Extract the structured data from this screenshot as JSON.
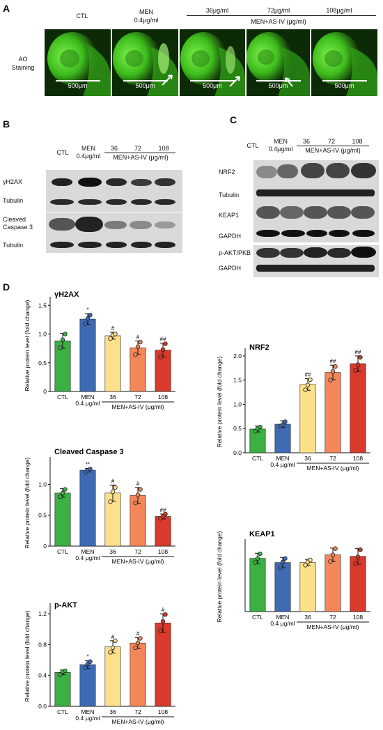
{
  "panelA": {
    "label": "A",
    "headers": {
      "ctl": "CTL",
      "men": "MEN",
      "men_dose": "0.4μg/ml",
      "d36": "36μg/ml",
      "d72": "72μg/ml",
      "d108": "108μg/ml",
      "group": "MEN+AS-IV (μg/ml)"
    },
    "row_label_1": "AO",
    "row_label_2": "Staining",
    "scale_text": "500μm"
  },
  "panelB": {
    "label": "B",
    "headers": {
      "ctl": "CTL",
      "men": "MEN",
      "men_dose": "0.4μg/ml",
      "d36": "36",
      "d72": "72",
      "d108": "108",
      "group": "MEN+AS-IV (μg/ml)"
    },
    "rows": {
      "h2ax": "γH2AX",
      "tub1": "Tubulin",
      "casp_1": "Cleaved",
      "casp_2": "Caspase 3",
      "tub2": "Tubulin"
    }
  },
  "panelC": {
    "label": "C",
    "headers": {
      "ctl": "CTL",
      "men": "MEN",
      "men_dose": "0.4μg/ml",
      "d36": "36",
      "d72": "72",
      "d108": "108",
      "group": "MEN+AS-IV (μg/ml)"
    },
    "rows": {
      "nrf2": "NRF2",
      "tub": "Tubulin",
      "keap1": "KEAP1",
      "gapdh1": "GAPDH",
      "pakt": "p-AKT/PKB",
      "gapdh2": "GAPDH"
    }
  },
  "panelD": {
    "label": "D"
  },
  "colors": {
    "ctl": "#3cb043",
    "men": "#3f6bb5",
    "d36": "#ffe08a",
    "d72": "#f4875a",
    "d108": "#d93a2b"
  },
  "chart_data": [
    {
      "id": "h2ax",
      "type": "bar",
      "title": "γH2AX",
      "ylabel": "Relative protein level (fold change)",
      "categories": [
        "CTL",
        "MEN",
        "36",
        "72",
        "108"
      ],
      "category_sublabel": {
        "MEN": "0.4 μg/ml"
      },
      "group_label": "MEN+AS-IV (μg/ml)",
      "values": [
        0.88,
        1.26,
        0.97,
        0.76,
        0.72
      ],
      "errors": [
        0.13,
        0.09,
        0.06,
        0.12,
        0.12
      ],
      "points": [
        [
          0.76,
          0.9,
          1.0
        ],
        [
          1.18,
          1.27,
          1.33
        ],
        [
          0.92,
          0.98,
          1.0
        ],
        [
          0.64,
          0.78,
          0.86
        ],
        [
          0.6,
          0.73,
          0.83
        ]
      ],
      "annotations": [
        "",
        "*",
        "#",
        "#",
        "##"
      ],
      "ylim": [
        0,
        1.6
      ],
      "yticks": [
        0,
        0.5,
        1.0,
        1.5
      ]
    },
    {
      "id": "nrf2",
      "type": "bar",
      "title": "NRF2",
      "ylabel": "Relative protein level (fold change)",
      "categories": [
        "CTL",
        "MEN",
        "36",
        "72",
        "108"
      ],
      "category_sublabel": {
        "MEN": "0.4 μg/ml"
      },
      "group_label": "MEN+AS-IV (μg/ml)",
      "values": [
        0.49,
        0.59,
        1.41,
        1.66,
        1.84
      ],
      "errors": [
        0.06,
        0.07,
        0.12,
        0.15,
        0.16
      ],
      "points": [
        [
          0.44,
          0.5,
          0.53
        ],
        [
          0.55,
          0.58,
          0.64
        ],
        [
          1.3,
          1.4,
          1.51
        ],
        [
          1.5,
          1.68,
          1.78
        ],
        [
          1.7,
          1.82,
          1.97
        ]
      ],
      "annotations": [
        "",
        "",
        "##",
        "##",
        "##"
      ],
      "ylim": [
        0,
        2.1
      ],
      "yticks": [
        0.0,
        0.5,
        1.0,
        1.5,
        2.0
      ]
    },
    {
      "id": "casp3",
      "type": "bar",
      "title": "Cleaved Caspase 3",
      "ylabel": "Relative protein level (fold change)",
      "categories": [
        "CTL",
        "MEN",
        "36",
        "72",
        "108"
      ],
      "category_sublabel": {
        "MEN": "0.4 μg/ml"
      },
      "group_label": "MEN+AS-IV (μg/ml)",
      "values": [
        0.86,
        1.23,
        0.86,
        0.82,
        0.48
      ],
      "errors": [
        0.07,
        0.03,
        0.13,
        0.13,
        0.04
      ],
      "points": [
        [
          0.8,
          0.86,
          0.92
        ],
        [
          1.2,
          1.23,
          1.25
        ],
        [
          0.72,
          0.88,
          0.95
        ],
        [
          0.7,
          0.83,
          0.92
        ],
        [
          0.45,
          0.48,
          0.52
        ]
      ],
      "annotations": [
        "",
        "**",
        "#",
        "#",
        "##"
      ],
      "ylim": [
        0,
        1.4
      ],
      "yticks": [
        0,
        0.5,
        1.0
      ]
    },
    {
      "id": "keap1",
      "type": "bar",
      "title": "KEAP1",
      "ylabel": "Relative protein level (fold change)",
      "categories": [
        "CTL",
        "MEN",
        "36",
        "72",
        "108"
      ],
      "category_sublabel": {
        "MEN": "0.4 μg/ml"
      },
      "group_label": "MEN+AS-IV (μg/ml)",
      "values": [
        1.03,
        0.95,
        0.95,
        1.1,
        1.07
      ],
      "errors": [
        0.1,
        0.1,
        0.06,
        0.13,
        0.15
      ],
      "points": [
        [
          0.95,
          1.03,
          1.12
        ],
        [
          0.85,
          0.96,
          1.03
        ],
        [
          0.9,
          0.96,
          1.0
        ],
        [
          0.97,
          1.1,
          1.22
        ],
        [
          0.93,
          1.06,
          1.2
        ]
      ],
      "annotations": [
        "",
        "",
        "",
        "",
        ""
      ],
      "ylim": [
        0,
        1.35
      ],
      "yticks": []
    },
    {
      "id": "pakt",
      "type": "bar",
      "title": "p-AKT",
      "ylabel": "Relative protein level (fold change)",
      "categories": [
        "CTL",
        "MEN",
        "36",
        "72",
        "108"
      ],
      "category_sublabel": {
        "MEN": "0.4 μg/ml"
      },
      "group_label": "MEN+AS-IV (μg/ml)",
      "values": [
        0.44,
        0.54,
        0.77,
        0.82,
        1.08
      ],
      "errors": [
        0.03,
        0.05,
        0.08,
        0.07,
        0.12
      ],
      "points": [
        [
          0.41,
          0.45,
          0.46
        ],
        [
          0.5,
          0.55,
          0.58
        ],
        [
          0.7,
          0.76,
          0.85
        ],
        [
          0.76,
          0.82,
          0.88
        ],
        [
          0.98,
          1.1,
          1.19
        ]
      ],
      "annotations": [
        "",
        "*",
        "#",
        "#",
        "#"
      ],
      "ylim": [
        0,
        1.3
      ],
      "yticks": [
        0.0,
        0.4,
        0.8,
        1.2
      ]
    }
  ]
}
